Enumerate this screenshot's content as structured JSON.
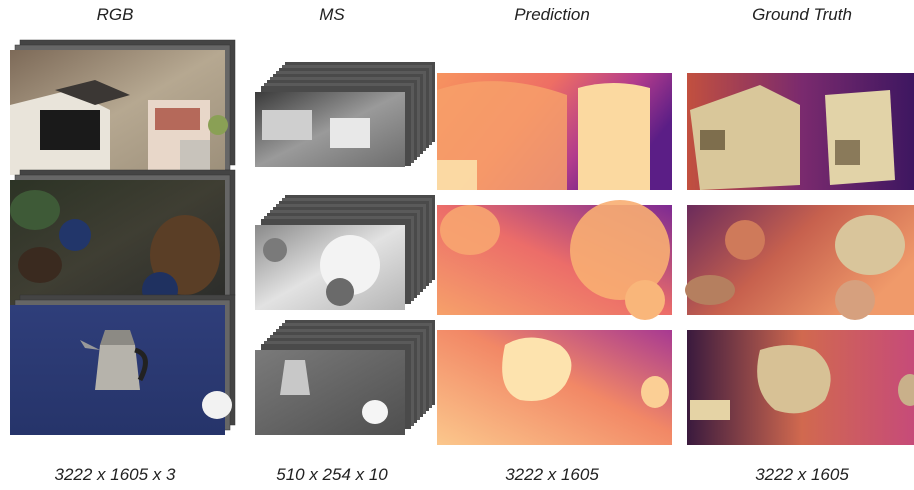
{
  "columns": [
    {
      "title": "RGB",
      "dimensions": "3222 x 1605 x 3"
    },
    {
      "title": "MS",
      "dimensions": "510 x 254 x 10"
    },
    {
      "title": "Prediction",
      "dimensions": "3222 x 1605"
    },
    {
      "title": "Ground Truth",
      "dimensions": "3222 x 1605"
    }
  ],
  "rows": [
    {
      "scene": "boxes"
    },
    {
      "scene": "plush-toys"
    },
    {
      "scene": "coffee-pot"
    }
  ],
  "stacks": {
    "rgb_layers": 3,
    "ms_layers": 10
  },
  "colors": {
    "depth_near": "#fde8a5",
    "depth_mid": "#f58a5a",
    "depth_far": "#a8329a",
    "depth_farthest": "#4a1b7a",
    "stack_edge": "#555555"
  }
}
